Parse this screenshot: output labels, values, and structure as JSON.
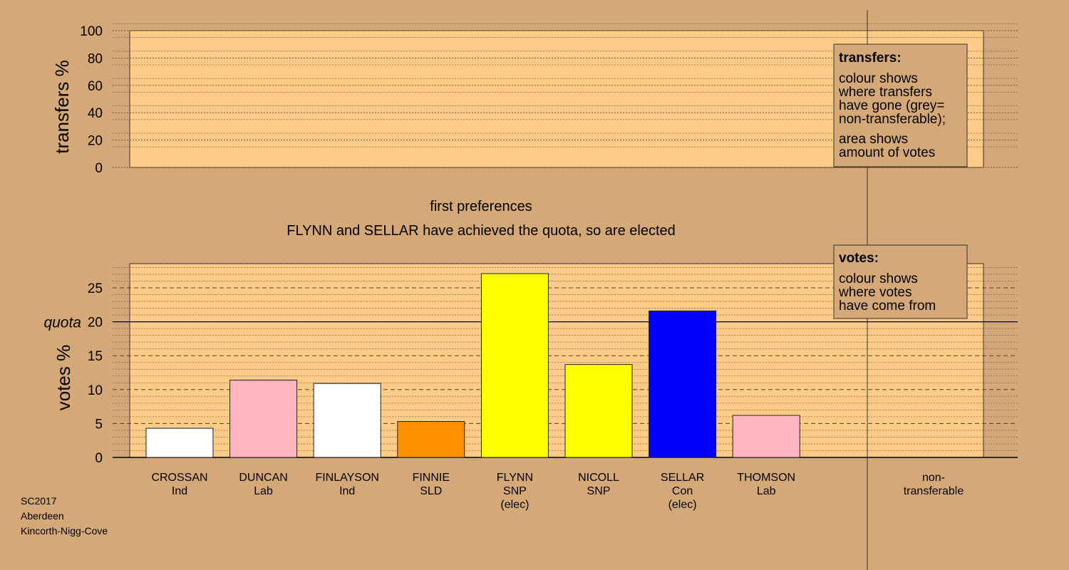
{
  "chart_data": [
    {
      "type": "bar",
      "panel": "transfers",
      "ylabel": "transfers %",
      "ylim": [
        0,
        100
      ],
      "yticks": [
        0,
        20,
        40,
        60,
        80,
        100
      ],
      "categories": [],
      "values": [],
      "legend": {
        "title": "transfers:",
        "lines": [
          "colour shows",
          "where transfers",
          "have gone (grey=",
          "non-transferable);",
          "area shows",
          "amount of votes"
        ]
      }
    },
    {
      "type": "bar",
      "panel": "votes",
      "ylabel": "votes %",
      "ylim": [
        0,
        28.5
      ],
      "yticks": [
        0,
        5,
        10,
        15,
        20,
        25
      ],
      "quota": 20,
      "quota_label": "quota",
      "categories": [
        {
          "name": "CROSSAN",
          "party": "Ind",
          "note": ""
        },
        {
          "name": "DUNCAN",
          "party": "Lab",
          "note": ""
        },
        {
          "name": "FINLAYSON",
          "party": "Ind",
          "note": ""
        },
        {
          "name": "FINNIE",
          "party": "SLD",
          "note": ""
        },
        {
          "name": "FLYNN",
          "party": "SNP",
          "note": "(elec)"
        },
        {
          "name": "NICOLL",
          "party": "SNP",
          "note": ""
        },
        {
          "name": "SELLAR",
          "party": "Con",
          "note": "(elec)"
        },
        {
          "name": "THOMSON",
          "party": "Lab",
          "note": ""
        }
      ],
      "values": [
        4.3,
        11.4,
        10.9,
        5.3,
        27.1,
        13.7,
        21.6,
        6.2
      ],
      "colors": [
        "#ffffff",
        "#ffb6c1",
        "#ffffff",
        "#ff9000",
        "#ffff00",
        "#ffff00",
        "#0000ff",
        "#ffb6c1"
      ],
      "extra_category": [
        "non-",
        "transferable"
      ],
      "legend": {
        "title": "votes:",
        "lines": [
          "colour shows",
          "where votes",
          "have come from"
        ]
      }
    }
  ],
  "messages": {
    "stage": "first preferences",
    "status": "FLYNN and SELLAR have achieved the quota, so are elected"
  },
  "footer": [
    "SC2017",
    "Aberdeen",
    "Kincorth-Nigg-Cove"
  ],
  "colors": {
    "background": "#d4a977",
    "panel": "#ffcc88"
  }
}
